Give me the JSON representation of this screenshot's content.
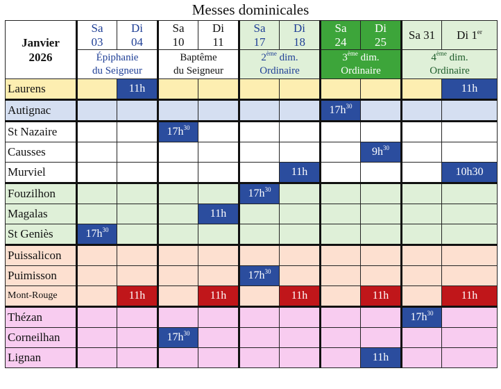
{
  "title": "Messes dominicales",
  "header": {
    "month": "Janvier",
    "year": "2026",
    "weekends": [
      {
        "sat": "Sa",
        "sat_num": "03",
        "sun": "Di",
        "sun_num": "04",
        "name1": "Épiphanie",
        "name1_sup": "",
        "name1_rest": "",
        "name2": "du Seigneur"
      },
      {
        "sat": "Sa",
        "sat_num": "10",
        "sun": "Di",
        "sun_num": "11",
        "name1": "Baptême",
        "name1_sup": "",
        "name1_rest": "",
        "name2": "du Seigneur"
      },
      {
        "sat": "Sa",
        "sat_num": "17",
        "sun": "Di",
        "sun_num": "18",
        "name1": "2",
        "name1_sup": "ème",
        "name1_rest": " dim.",
        "name2": "Ordinaire"
      },
      {
        "sat": "Sa",
        "sat_num": "24",
        "sun": "Di",
        "sun_num": "25",
        "name1": "3",
        "name1_sup": "ème",
        "name1_rest": " dim.",
        "name2": "Ordinaire"
      },
      {
        "sat": "Sa 31",
        "sat_num": "",
        "sun": "Di 1",
        "sun_num": "er",
        "name1": "4",
        "name1_sup": "ème",
        "name1_rest": " dim.",
        "name2": "Ordinaire"
      }
    ]
  },
  "colors": {
    "yellow": "#fdeeb1",
    "blue_light": "#d5dff1",
    "green_light": "#dff0d8",
    "green_dark": "#3da53a",
    "orange_light": "#fde0d0",
    "pink": "#f8ccf0",
    "mass_blue": "#2b4d9e",
    "mass_red": "#c0161a"
  },
  "rows": [
    {
      "place": "Laurens",
      "cells": [
        {
          "t": ""
        },
        {
          "t": "11h",
          "c": "blue"
        },
        {
          "t": ""
        },
        {
          "t": ""
        },
        {
          "t": ""
        },
        {
          "t": ""
        },
        {
          "t": ""
        },
        {
          "t": ""
        },
        {
          "t": ""
        },
        {
          "t": "11h",
          "c": "blue"
        }
      ]
    },
    {
      "place": "Autignac",
      "cells": [
        {
          "t": ""
        },
        {
          "t": ""
        },
        {
          "t": ""
        },
        {
          "t": ""
        },
        {
          "t": ""
        },
        {
          "t": ""
        },
        {
          "t": "17h",
          "s": "30",
          "c": "blue"
        },
        {
          "t": ""
        },
        {
          "t": ""
        },
        {
          "t": ""
        }
      ]
    },
    {
      "place": "St Nazaire",
      "cells": [
        {
          "t": ""
        },
        {
          "t": ""
        },
        {
          "t": "17h",
          "s": "30",
          "c": "blue"
        },
        {
          "t": ""
        },
        {
          "t": ""
        },
        {
          "t": ""
        },
        {
          "t": ""
        },
        {
          "t": ""
        },
        {
          "t": ""
        },
        {
          "t": ""
        }
      ]
    },
    {
      "place": "Causses",
      "cells": [
        {
          "t": ""
        },
        {
          "t": ""
        },
        {
          "t": ""
        },
        {
          "t": ""
        },
        {
          "t": ""
        },
        {
          "t": ""
        },
        {
          "t": ""
        },
        {
          "t": "9h",
          "s": "30",
          "c": "blue"
        },
        {
          "t": ""
        },
        {
          "t": ""
        }
      ]
    },
    {
      "place": "Murviel",
      "cells": [
        {
          "t": ""
        },
        {
          "t": ""
        },
        {
          "t": ""
        },
        {
          "t": ""
        },
        {
          "t": ""
        },
        {
          "t": "11h",
          "c": "blue"
        },
        {
          "t": ""
        },
        {
          "t": ""
        },
        {
          "t": ""
        },
        {
          "t": "10h30",
          "c": "blue"
        }
      ]
    },
    {
      "place": "Fouzilhon",
      "cells": [
        {
          "t": ""
        },
        {
          "t": ""
        },
        {
          "t": ""
        },
        {
          "t": ""
        },
        {
          "t": "17h",
          "s": "30",
          "c": "blue"
        },
        {
          "t": ""
        },
        {
          "t": ""
        },
        {
          "t": ""
        },
        {
          "t": ""
        },
        {
          "t": ""
        }
      ]
    },
    {
      "place": "Magalas",
      "cells": [
        {
          "t": ""
        },
        {
          "t": ""
        },
        {
          "t": ""
        },
        {
          "t": "11h",
          "c": "blue"
        },
        {
          "t": ""
        },
        {
          "t": ""
        },
        {
          "t": ""
        },
        {
          "t": ""
        },
        {
          "t": ""
        },
        {
          "t": ""
        }
      ]
    },
    {
      "place": "St Geniès",
      "cells": [
        {
          "t": "17h",
          "s": "30",
          "c": "blue"
        },
        {
          "t": ""
        },
        {
          "t": ""
        },
        {
          "t": ""
        },
        {
          "t": ""
        },
        {
          "t": ""
        },
        {
          "t": ""
        },
        {
          "t": ""
        },
        {
          "t": ""
        },
        {
          "t": ""
        }
      ]
    },
    {
      "place": "Puissalicon",
      "cells": [
        {
          "t": ""
        },
        {
          "t": ""
        },
        {
          "t": ""
        },
        {
          "t": ""
        },
        {
          "t": ""
        },
        {
          "t": ""
        },
        {
          "t": ""
        },
        {
          "t": ""
        },
        {
          "t": ""
        },
        {
          "t": ""
        }
      ]
    },
    {
      "place": "Puimisson",
      "cells": [
        {
          "t": ""
        },
        {
          "t": ""
        },
        {
          "t": ""
        },
        {
          "t": ""
        },
        {
          "t": "17h",
          "s": "30",
          "c": "blue"
        },
        {
          "t": ""
        },
        {
          "t": ""
        },
        {
          "t": ""
        },
        {
          "t": ""
        },
        {
          "t": ""
        }
      ]
    },
    {
      "place": "Mont-Rouge",
      "cells": [
        {
          "t": ""
        },
        {
          "t": "11h",
          "c": "red"
        },
        {
          "t": ""
        },
        {
          "t": "11h",
          "c": "red"
        },
        {
          "t": ""
        },
        {
          "t": "11h",
          "c": "red"
        },
        {
          "t": ""
        },
        {
          "t": "11h",
          "c": "red"
        },
        {
          "t": ""
        },
        {
          "t": "11h",
          "c": "red"
        }
      ]
    },
    {
      "place": "Thézan",
      "cells": [
        {
          "t": ""
        },
        {
          "t": ""
        },
        {
          "t": ""
        },
        {
          "t": ""
        },
        {
          "t": ""
        },
        {
          "t": ""
        },
        {
          "t": ""
        },
        {
          "t": ""
        },
        {
          "t": "17h",
          "s": "30",
          "c": "blue"
        },
        {
          "t": ""
        }
      ]
    },
    {
      "place": "Corneilhan",
      "cells": [
        {
          "t": ""
        },
        {
          "t": ""
        },
        {
          "t": "17h",
          "s": "30",
          "c": "blue"
        },
        {
          "t": ""
        },
        {
          "t": ""
        },
        {
          "t": ""
        },
        {
          "t": ""
        },
        {
          "t": ""
        },
        {
          "t": ""
        },
        {
          "t": ""
        }
      ]
    },
    {
      "place": "Lignan",
      "cells": [
        {
          "t": ""
        },
        {
          "t": ""
        },
        {
          "t": ""
        },
        {
          "t": ""
        },
        {
          "t": ""
        },
        {
          "t": ""
        },
        {
          "t": ""
        },
        {
          "t": "11h",
          "c": "blue"
        },
        {
          "t": ""
        },
        {
          "t": ""
        }
      ]
    }
  ]
}
